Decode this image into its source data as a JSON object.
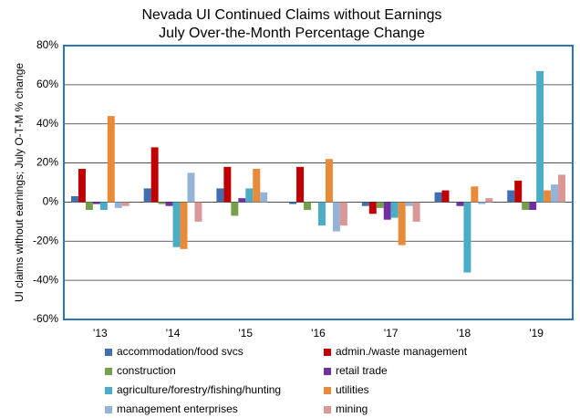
{
  "chart_data": {
    "type": "bar",
    "title": [
      "Nevada UI Continued Claims without Earnings",
      "July Over-the-Month Percentage Change"
    ],
    "y_label": "UI claims without earnings; July O-T-M % change",
    "categories": [
      "'13",
      "'14",
      "'15",
      "'16",
      "'17",
      "'18",
      "'19"
    ],
    "series": [
      {
        "name": "accommodation/food svcs",
        "color": "#3f6fb0",
        "values": [
          3,
          7,
          7,
          -1,
          -2,
          5,
          6
        ]
      },
      {
        "name": "admin./waste management",
        "color": "#c00000",
        "values": [
          17,
          28,
          18,
          18,
          -6,
          6,
          11
        ]
      },
      {
        "name": "construction",
        "color": "#77a04a",
        "values": [
          -4,
          -1,
          -7,
          -4,
          -3,
          0,
          -4
        ]
      },
      {
        "name": "retail trade",
        "color": "#7030a0",
        "values": [
          -1,
          -2,
          2,
          0,
          -9,
          -2,
          -4
        ]
      },
      {
        "name": "agriculture/forestry/fishing/hunting",
        "color": "#4bacc6",
        "values": [
          -4,
          -23,
          7,
          -12,
          -8,
          -36,
          67
        ]
      },
      {
        "name": "utilities",
        "color": "#e98a3a",
        "values": [
          44,
          -24,
          17,
          22,
          -22,
          8,
          6
        ]
      },
      {
        "name": "management enterprises",
        "color": "#95b3d7",
        "values": [
          -3,
          15,
          5,
          -15,
          -2,
          -1,
          9
        ]
      },
      {
        "name": "mining",
        "color": "#d99795",
        "values": [
          -2,
          -10,
          0,
          -12,
          -10,
          2,
          14
        ]
      }
    ],
    "ylim": [
      -60,
      80
    ],
    "yticks": [
      {
        "value": -60,
        "label": "-60%"
      },
      {
        "value": -40,
        "label": "-40%"
      },
      {
        "value": -20,
        "label": "-20%"
      },
      {
        "value": 0,
        "label": "0%"
      },
      {
        "value": 20,
        "label": "20%"
      },
      {
        "value": 40,
        "label": "40%"
      },
      {
        "value": 60,
        "label": "60%"
      },
      {
        "value": 80,
        "label": "80%"
      }
    ],
    "grid": true
  }
}
